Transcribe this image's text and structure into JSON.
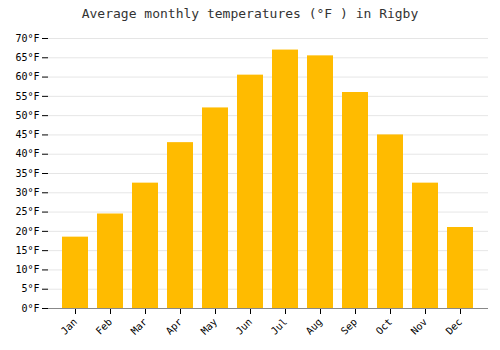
{
  "chart_data": {
    "type": "bar",
    "title": "Average monthly temperatures (°F ) in Rigby",
    "categories": [
      "Jan",
      "Feb",
      "Mar",
      "Apr",
      "May",
      "Jun",
      "Jul",
      "Aug",
      "Sep",
      "Oct",
      "Nov",
      "Dec"
    ],
    "values": [
      18.5,
      24.5,
      32.5,
      43,
      52,
      60.5,
      67,
      65.5,
      56,
      45,
      32.5,
      21
    ],
    "color": "#FFBB00",
    "ylim": [
      0,
      70
    ],
    "yticks": [
      {
        "value": 0,
        "label": "0°F"
      },
      {
        "value": 5,
        "label": "5°F"
      },
      {
        "value": 10,
        "label": "10°F"
      },
      {
        "value": 15,
        "label": "15°F"
      },
      {
        "value": 20,
        "label": "20°F"
      },
      {
        "value": 25,
        "label": "25°F"
      },
      {
        "value": 30,
        "label": "30°F"
      },
      {
        "value": 35,
        "label": "35°F"
      },
      {
        "value": 40,
        "label": "40°F"
      },
      {
        "value": 45,
        "label": "45°F"
      },
      {
        "value": 50,
        "label": "50°F"
      },
      {
        "value": 55,
        "label": "55°F"
      },
      {
        "value": 60,
        "label": "60°F"
      },
      {
        "value": 65,
        "label": "65°F"
      },
      {
        "value": 70,
        "label": "70°F"
      }
    ],
    "grid": true
  }
}
